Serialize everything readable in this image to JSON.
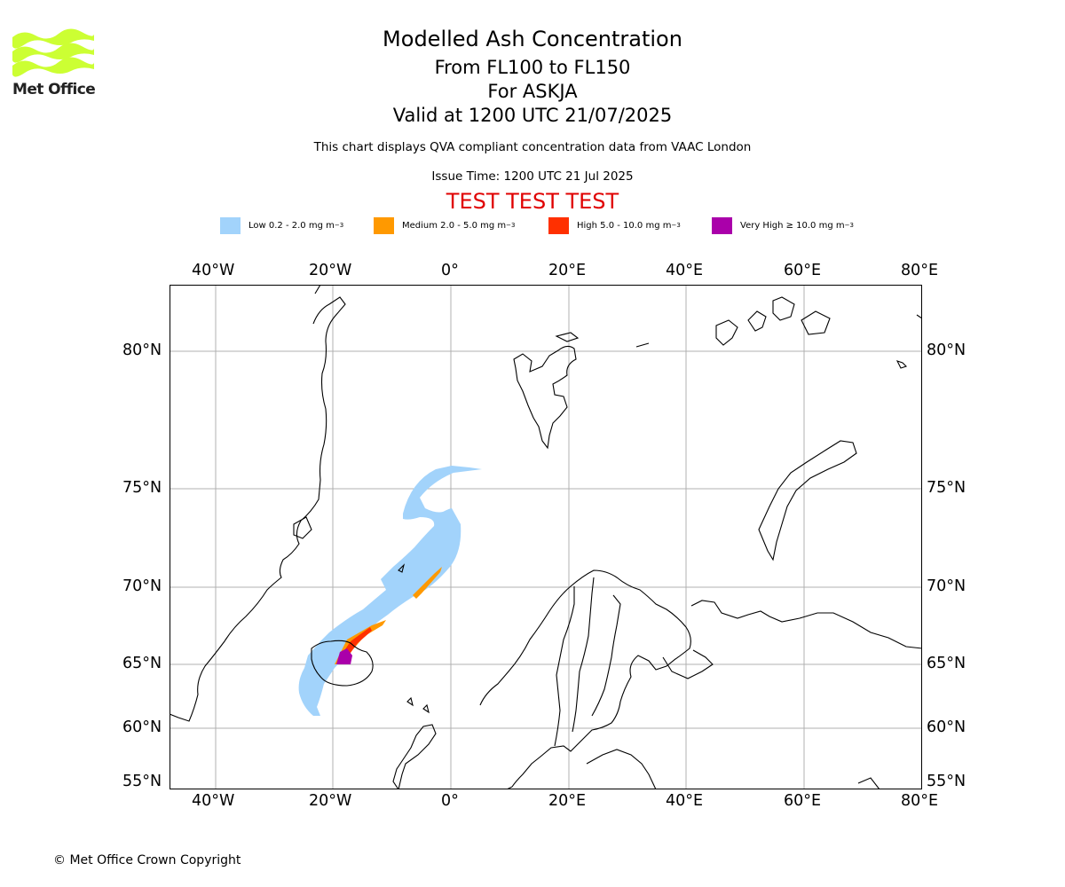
{
  "logo": {
    "text": "Met Office",
    "icon": "met-office-waves-logo",
    "color": "#ccff33"
  },
  "header": {
    "title": "Modelled Ash Concentration",
    "levels": "From FL100 to FL150",
    "volcano": "For ASKJA",
    "valid": "Valid at 1200 UTC 21/07/2025",
    "subtitle": "This chart displays QVA compliant concentration data from VAAC London",
    "issue_time": "Issue Time: 1200 UTC 21 Jul 2025",
    "banner": "TEST TEST TEST",
    "banner_color": "#e00000"
  },
  "legend": [
    {
      "label": "Low 0.2 - 2.0 mg m",
      "sup": "−3",
      "color": "#a2d3fb"
    },
    {
      "label": "Medium 2.0 - 5.0 mg m",
      "sup": "−3",
      "color": "#ff9900"
    },
    {
      "label": "High 5.0 - 10.0 mg m",
      "sup": "−3",
      "color": "#ff3000"
    },
    {
      "label": "Very High ≥ 10.0 mg m",
      "sup": "−3",
      "color": "#aa00aa"
    }
  ],
  "map": {
    "lon_ticks": [
      "40°W",
      "20°W",
      "0°",
      "20°E",
      "40°E",
      "60°E",
      "80°E"
    ],
    "lat_ticks": [
      "80°N",
      "75°N",
      "70°N",
      "65°N",
      "60°N",
      "55°N"
    ],
    "gridlines": true,
    "region": "North Atlantic / Iceland / Scandinavia"
  },
  "footer": {
    "copyright": "© Met Office Crown Copyright"
  }
}
